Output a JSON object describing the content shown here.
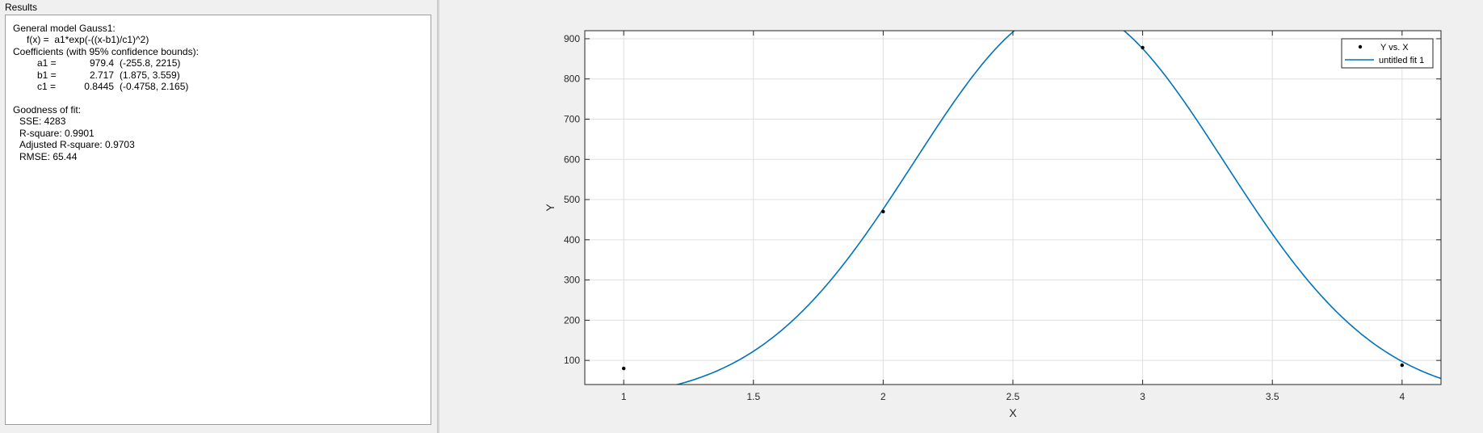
{
  "results": {
    "title": "Results",
    "model_line": "General model Gauss1:",
    "formula": "f(x) =  a1*exp(-((x-b1)/c1)^2)",
    "coef_header": "Coefficients (with 95% confidence bounds):",
    "coefficients": [
      {
        "name": "a1 =",
        "value": "979.4",
        "bounds": "(-255.8, 2215)"
      },
      {
        "name": "b1 =",
        "value": "2.717",
        "bounds": "(1.875, 3.559)"
      },
      {
        "name": "c1 =",
        "value": "0.8445",
        "bounds": "(-0.4758, 2.165)"
      }
    ],
    "gof_header": "Goodness of fit:",
    "sse": "SSE: 4283",
    "rsquare": "R-square: 0.9901",
    "adj_rsquare": "Adjusted R-square: 0.9703",
    "rmse": "RMSE: 65.44"
  },
  "colors": {
    "fit_line": "#0072bd",
    "points": "#000000",
    "grid": "#dfdfdf"
  },
  "chart_data": {
    "type": "scatter",
    "xlabel": "X",
    "ylabel": "Y",
    "xlim": [
      0.85,
      4.15
    ],
    "ylim": [
      40,
      920
    ],
    "xticks": [
      1,
      1.5,
      2,
      2.5,
      3,
      3.5,
      4
    ],
    "xtick_labels": [
      "1",
      "1.5",
      "2",
      "2.5",
      "3",
      "3.5",
      "4"
    ],
    "yticks": [
      100,
      200,
      300,
      400,
      500,
      600,
      700,
      800,
      900
    ],
    "ytick_labels": [
      "100",
      "200",
      "300",
      "400",
      "500",
      "600",
      "700",
      "800",
      "900"
    ],
    "grid": true,
    "legend_position": "top-right",
    "series": [
      {
        "name": "Y vs. X",
        "kind": "points",
        "x": [
          1,
          2,
          3,
          4
        ],
        "y": [
          80,
          470,
          878,
          88
        ]
      },
      {
        "name": "untitled fit 1",
        "kind": "curve",
        "model": "gauss1",
        "params": {
          "a1": 979.4,
          "b1": 2.717,
          "c1": 0.8445
        }
      }
    ]
  }
}
